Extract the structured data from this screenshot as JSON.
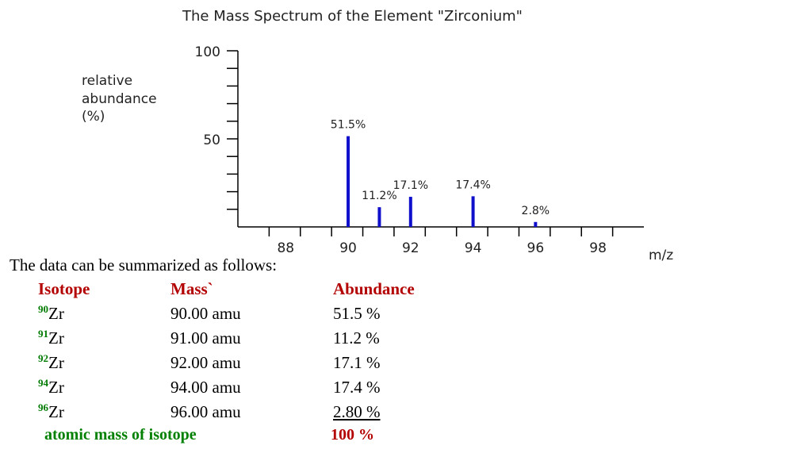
{
  "colors": {
    "header": "#b30000",
    "superscript": "#007a00",
    "footer_label": "#008000",
    "footer_total": "#b30000",
    "bars": "#1010cc"
  },
  "chart_data": {
    "type": "bar",
    "title": "The Mass Spectrum of the Element \"Zirconium\"",
    "xlabel": "m/z",
    "ylabel": [
      "relative",
      "abundance",
      "(%)"
    ],
    "xlim": [
      86,
      99
    ],
    "ylim": [
      0,
      100
    ],
    "x_ticks": [
      88,
      90,
      92,
      94,
      96,
      98
    ],
    "y_ticks": [
      50,
      100
    ],
    "grid": false,
    "series": [
      {
        "points": [
          {
            "x": 90,
            "y": 51.5,
            "label": "51.5%"
          },
          {
            "x": 91,
            "y": 11.2,
            "label": "11.2%"
          },
          {
            "x": 92,
            "y": 17.1,
            "label": "17.1%"
          },
          {
            "x": 94,
            "y": 17.4,
            "label": "17.4%"
          },
          {
            "x": 96,
            "y": 2.8,
            "label": "2.8%"
          }
        ]
      }
    ]
  },
  "summary": {
    "intro": "The data can be summarized as follows:",
    "headers": {
      "isotope": "Isotope",
      "mass": "Mass`",
      "abundance": "Abundance"
    },
    "rows": [
      {
        "mass_number": "90",
        "symbol": "Zr",
        "mass": "90.00 amu",
        "abundance": "51.5 %"
      },
      {
        "mass_number": "91",
        "symbol": "Zr",
        "mass": "91.00 amu",
        "abundance": "11.2 %"
      },
      {
        "mass_number": "92",
        "symbol": "Zr",
        "mass": "92.00 amu",
        "abundance": "17.1 %"
      },
      {
        "mass_number": "94",
        "symbol": "Zr",
        "mass": "94.00 amu",
        "abundance": "17.4 %"
      },
      {
        "mass_number": "96",
        "symbol": "Zr",
        "mass": "96.00 amu",
        "abundance": "2.80 %"
      }
    ],
    "footer": {
      "label": "atomic mass of isotope",
      "total": "100 %"
    }
  }
}
